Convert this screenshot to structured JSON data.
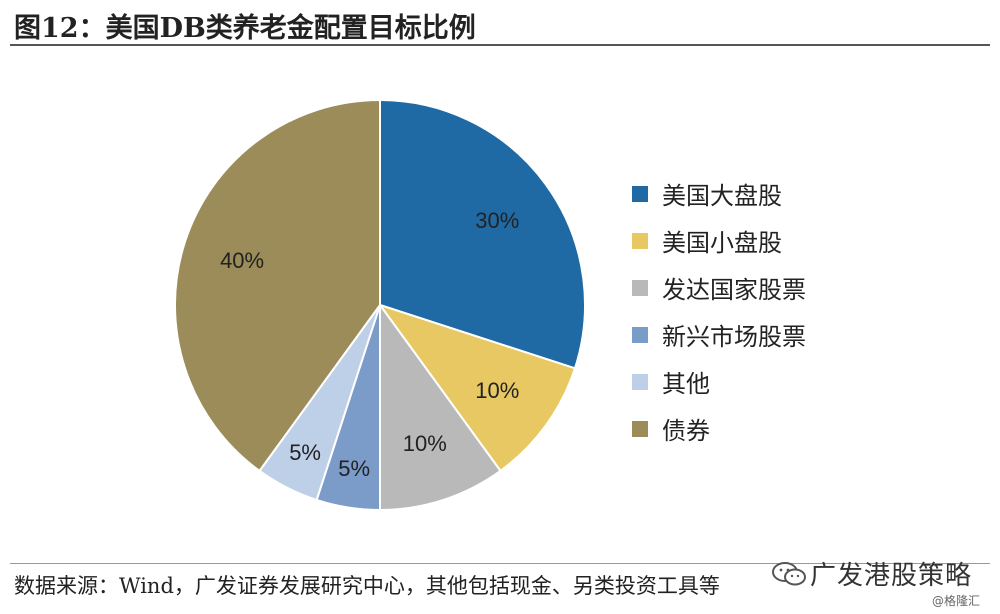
{
  "title": "图12：美国DB类养老金配置目标比例",
  "chart_data": {
    "type": "pie",
    "title": "图12：美国DB类养老金配置目标比例",
    "slices": [
      {
        "label": "美国大盘股",
        "value": 30,
        "display": "30%",
        "color": "#1f6aa5"
      },
      {
        "label": "美国小盘股",
        "value": 10,
        "display": "10%",
        "color": "#e8c862"
      },
      {
        "label": "发达国家股票",
        "value": 10,
        "display": "10%",
        "color": "#b9b9b9"
      },
      {
        "label": "新兴市场股票",
        "value": 5,
        "display": "5%",
        "color": "#7b9bc8"
      },
      {
        "label": "其他",
        "value": 5,
        "display": "5%",
        "color": "#bed0e8"
      },
      {
        "label": "债券",
        "value": 40,
        "display": "40%",
        "color": "#9b8c59"
      }
    ],
    "legend_position": "right"
  },
  "source": "数据来源：Wind，广发证券发展研究中心，其他包括现金、另类投资工具等",
  "watermark": {
    "icon": "wechat-icon",
    "text": "广发港股策略",
    "sub": "@格隆汇"
  }
}
